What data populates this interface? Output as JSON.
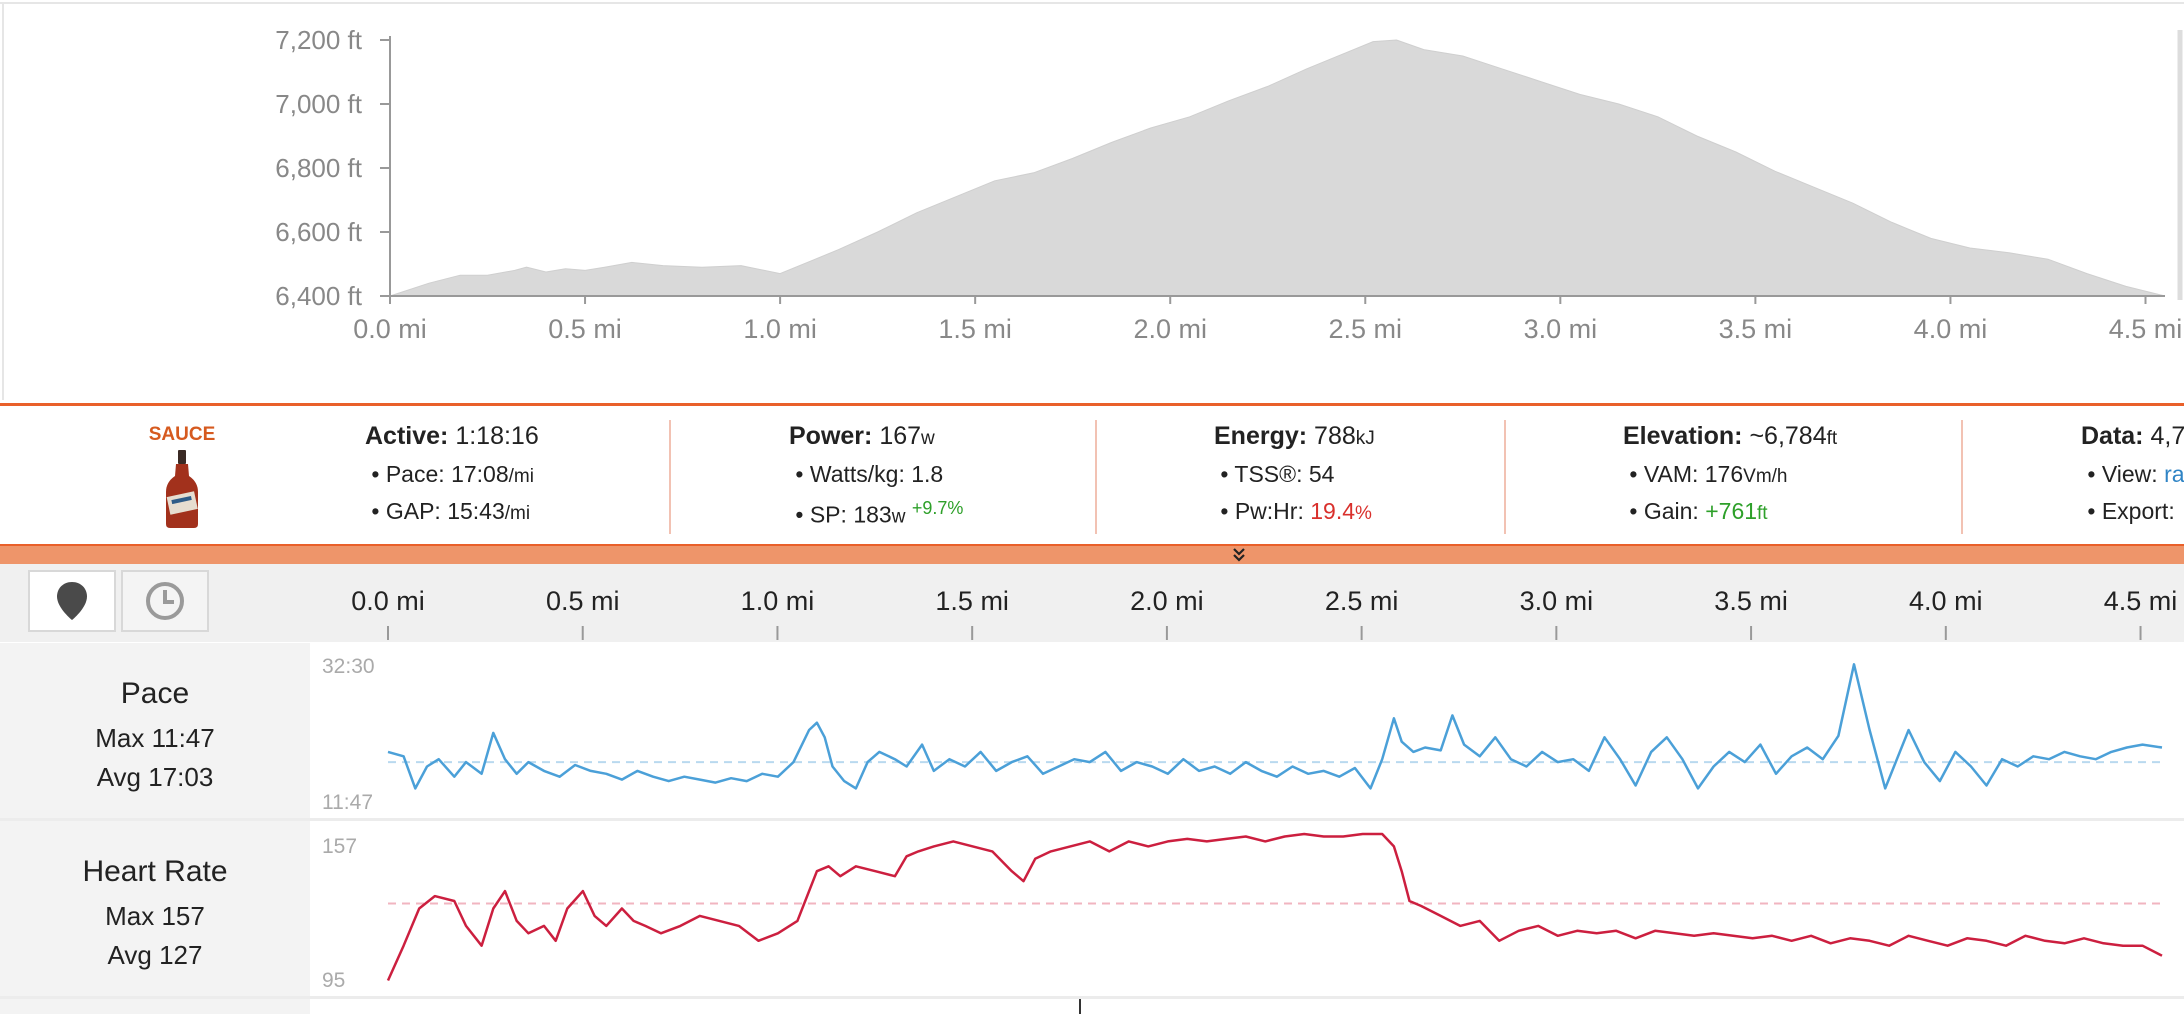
{
  "elevation_chart": {
    "y_ticks": [
      "7,200 ft",
      "7,000 ft",
      "6,800 ft",
      "6,600 ft",
      "6,400 ft"
    ],
    "x_ticks": [
      "0.0 mi",
      "0.5 mi",
      "1.0 mi",
      "1.5 mi",
      "2.0 mi",
      "2.5 mi",
      "3.0 mi",
      "3.5 mi",
      "4.0 mi",
      "4.5 mi"
    ],
    "fill_color": "#d9d9d9"
  },
  "chart_data": [
    {
      "type": "area",
      "ylim": [
        6400,
        7200
      ],
      "xlim": [
        0,
        4.55
      ],
      "x": [
        0,
        0.1,
        0.18,
        0.25,
        0.32,
        0.35,
        0.4,
        0.45,
        0.5,
        0.55,
        0.62,
        0.7,
        0.8,
        0.9,
        1.0,
        1.08,
        1.15,
        1.25,
        1.35,
        1.45,
        1.55,
        1.65,
        1.75,
        1.85,
        1.95,
        2.05,
        2.15,
        2.25,
        2.35,
        2.45,
        2.52,
        2.58,
        2.65,
        2.75,
        2.85,
        2.95,
        3.05,
        3.15,
        3.25,
        3.35,
        3.45,
        3.55,
        3.65,
        3.75,
        3.85,
        3.95,
        4.05,
        4.15,
        4.25,
        4.35,
        4.45,
        4.55
      ],
      "y": [
        6400,
        6440,
        6465,
        6465,
        6480,
        6490,
        6475,
        6485,
        6480,
        6490,
        6505,
        6495,
        6490,
        6495,
        6470,
        6510,
        6545,
        6600,
        6660,
        6710,
        6760,
        6785,
        6830,
        6880,
        6925,
        6960,
        7010,
        7055,
        7110,
        7160,
        7195,
        7200,
        7170,
        7150,
        7110,
        7070,
        7030,
        7000,
        6960,
        6900,
        6850,
        6790,
        6740,
        6690,
        6630,
        6580,
        6550,
        6535,
        6515,
        6470,
        6430,
        6400
      ]
    },
    {
      "type": "line",
      "title": "Pace",
      "y_tick_labels": [
        "32:30",
        "11:47"
      ],
      "x_tick_labels": [
        "0.0 mi",
        "0.5 mi",
        "1.0 mi",
        "1.5 mi",
        "2.0 mi",
        "2.5 mi",
        "3.0 mi",
        "3.5 mi",
        "4.0 mi",
        "4.5 mi"
      ],
      "xlim": [
        0,
        4.55
      ],
      "avg_level": 0.28,
      "series": [
        {
          "color": "#4ba0d8",
          "x": [
            0,
            0.04,
            0.07,
            0.1,
            0.13,
            0.17,
            0.2,
            0.24,
            0.27,
            0.3,
            0.33,
            0.36,
            0.4,
            0.44,
            0.48,
            0.52,
            0.56,
            0.6,
            0.64,
            0.68,
            0.72,
            0.76,
            0.8,
            0.84,
            0.88,
            0.92,
            0.96,
            1.0,
            1.04,
            1.08,
            1.1,
            1.12,
            1.14,
            1.17,
            1.2,
            1.23,
            1.26,
            1.3,
            1.33,
            1.37,
            1.4,
            1.44,
            1.48,
            1.52,
            1.56,
            1.6,
            1.64,
            1.68,
            1.72,
            1.76,
            1.8,
            1.84,
            1.88,
            1.92,
            1.96,
            2.0,
            2.04,
            2.08,
            2.12,
            2.16,
            2.2,
            2.24,
            2.28,
            2.32,
            2.36,
            2.4,
            2.44,
            2.48,
            2.52,
            2.55,
            2.58,
            2.6,
            2.63,
            2.66,
            2.7,
            2.73,
            2.76,
            2.8,
            2.84,
            2.88,
            2.92,
            2.96,
            3.0,
            3.04,
            3.08,
            3.12,
            3.16,
            3.2,
            3.24,
            3.28,
            3.32,
            3.36,
            3.4,
            3.44,
            3.48,
            3.52,
            3.56,
            3.6,
            3.64,
            3.68,
            3.72,
            3.76,
            3.8,
            3.84,
            3.87,
            3.9,
            3.94,
            3.98,
            4.02,
            4.06,
            4.1,
            4.14,
            4.18,
            4.22,
            4.26,
            4.3,
            4.34,
            4.38,
            4.42,
            4.46,
            4.5,
            4.55
          ],
          "y": [
            0.35,
            0.32,
            0.1,
            0.25,
            0.3,
            0.18,
            0.28,
            0.2,
            0.48,
            0.3,
            0.2,
            0.28,
            0.22,
            0.18,
            0.26,
            0.22,
            0.2,
            0.16,
            0.22,
            0.18,
            0.15,
            0.18,
            0.16,
            0.14,
            0.17,
            0.15,
            0.2,
            0.18,
            0.28,
            0.5,
            0.55,
            0.45,
            0.25,
            0.15,
            0.1,
            0.28,
            0.35,
            0.3,
            0.25,
            0.4,
            0.22,
            0.3,
            0.25,
            0.35,
            0.22,
            0.28,
            0.32,
            0.2,
            0.25,
            0.3,
            0.28,
            0.35,
            0.22,
            0.28,
            0.25,
            0.2,
            0.3,
            0.22,
            0.25,
            0.2,
            0.28,
            0.22,
            0.18,
            0.25,
            0.2,
            0.22,
            0.18,
            0.24,
            0.1,
            0.3,
            0.58,
            0.42,
            0.35,
            0.38,
            0.36,
            0.6,
            0.4,
            0.32,
            0.45,
            0.3,
            0.25,
            0.35,
            0.28,
            0.3,
            0.22,
            0.45,
            0.3,
            0.12,
            0.35,
            0.45,
            0.3,
            0.1,
            0.25,
            0.35,
            0.28,
            0.4,
            0.2,
            0.32,
            0.38,
            0.3,
            0.46,
            0.95,
            0.5,
            0.1,
            0.3,
            0.5,
            0.28,
            0.15,
            0.35,
            0.25,
            0.12,
            0.3,
            0.25,
            0.32,
            0.3,
            0.35,
            0.32,
            0.3,
            0.35,
            0.38,
            0.4,
            0.38
          ]
        }
      ]
    },
    {
      "type": "line",
      "title": "Heart Rate",
      "y_tick_labels": [
        "157",
        "95"
      ],
      "ylim": [
        95,
        157
      ],
      "xlim": [
        0,
        4.55
      ],
      "avg_value": 127,
      "series": [
        {
          "color": "#cc1f3f",
          "x": [
            0,
            0.04,
            0.08,
            0.12,
            0.17,
            0.2,
            0.24,
            0.27,
            0.3,
            0.33,
            0.36,
            0.4,
            0.43,
            0.46,
            0.5,
            0.53,
            0.56,
            0.6,
            0.63,
            0.66,
            0.7,
            0.75,
            0.8,
            0.85,
            0.9,
            0.95,
            1.0,
            1.05,
            1.1,
            1.13,
            1.16,
            1.2,
            1.25,
            1.3,
            1.33,
            1.36,
            1.4,
            1.45,
            1.5,
            1.55,
            1.6,
            1.63,
            1.66,
            1.7,
            1.75,
            1.8,
            1.85,
            1.9,
            1.95,
            2.0,
            2.05,
            2.1,
            2.15,
            2.2,
            2.25,
            2.3,
            2.35,
            2.4,
            2.45,
            2.5,
            2.55,
            2.58,
            2.6,
            2.62,
            2.65,
            2.7,
            2.75,
            2.8,
            2.85,
            2.9,
            2.95,
            3.0,
            3.05,
            3.1,
            3.15,
            3.2,
            3.25,
            3.3,
            3.35,
            3.4,
            3.45,
            3.5,
            3.55,
            3.6,
            3.65,
            3.7,
            3.75,
            3.8,
            3.85,
            3.9,
            3.95,
            4.0,
            4.05,
            4.1,
            4.15,
            4.2,
            4.25,
            4.3,
            4.35,
            4.4,
            4.45,
            4.5,
            4.55
          ],
          "y": [
            96,
            110,
            125,
            130,
            128,
            118,
            110,
            125,
            132,
            120,
            115,
            118,
            112,
            125,
            132,
            122,
            118,
            125,
            120,
            118,
            115,
            118,
            122,
            120,
            118,
            112,
            115,
            120,
            140,
            142,
            138,
            142,
            140,
            138,
            146,
            148,
            150,
            152,
            150,
            148,
            140,
            136,
            145,
            148,
            150,
            152,
            148,
            152,
            150,
            152,
            153,
            152,
            153,
            154,
            152,
            154,
            155,
            154,
            154,
            155,
            155,
            150,
            140,
            128,
            126,
            122,
            118,
            120,
            112,
            116,
            118,
            114,
            116,
            115,
            116,
            113,
            116,
            115,
            114,
            115,
            114,
            113,
            114,
            112,
            114,
            111,
            113,
            112,
            110,
            114,
            112,
            110,
            113,
            112,
            110,
            114,
            112,
            111,
            113,
            111,
            110,
            110,
            106
          ]
        }
      ]
    }
  ],
  "stats_bar": {
    "logo": {
      "text": "SAUCE",
      "color": "#d65a1f"
    },
    "active": {
      "label": "Active:",
      "value": "1:18:16",
      "pace_label": "Pace:",
      "pace_value": "17:08",
      "pace_unit": "/mi",
      "gap_label": "GAP:",
      "gap_value": "15:43",
      "gap_unit": "/mi"
    },
    "power": {
      "label": "Power:",
      "value": "167",
      "unit": "w",
      "wkg_label": "Watts/kg:",
      "wkg_value": "1.8",
      "sp_label": "SP:",
      "sp_value": "183",
      "sp_unit": "w",
      "sp_delta": "+9.7%"
    },
    "energy": {
      "label": "Energy:",
      "value": "788",
      "unit": "kJ",
      "tss_label": "TSS®:",
      "tss_value": "54",
      "pwhr_label": "Pw:Hr:",
      "pwhr_value": "19.4",
      "pwhr_unit": "%"
    },
    "elevation": {
      "label": "Elevation:",
      "value": "~6,784",
      "unit": "ft",
      "vam_label": "VAM:",
      "vam_value": "176",
      "vam_unit": "Vm/h",
      "gain_label": "Gain:",
      "gain_value": "+761",
      "gain_unit": "ft"
    },
    "data": {
      "label": "Data:",
      "value": "4,7",
      "view_label": "View:",
      "view_value": "ra",
      "export_label": "Export:"
    },
    "accent": "#e9602a",
    "collapse_icon": "chevrons-down-icon"
  },
  "analysis": {
    "toolbar": {
      "map_icon": "map-pin-icon",
      "time_icon": "clock-icon"
    },
    "x_ticks": [
      "0.0 mi",
      "0.5 mi",
      "1.0 mi",
      "1.5 mi",
      "2.0 mi",
      "2.5 mi",
      "3.0 mi",
      "3.5 mi",
      "4.0 mi",
      "4.5 mi"
    ],
    "pace": {
      "title": "Pace",
      "max": "Max 11:47",
      "avg": "Avg 17:03",
      "tick_top": "32:30",
      "tick_bottom": "11:47"
    },
    "hr": {
      "title": "Heart Rate",
      "max": "Max 157",
      "avg": "Avg 127",
      "tick_top": "157",
      "tick_bottom": "95"
    }
  }
}
